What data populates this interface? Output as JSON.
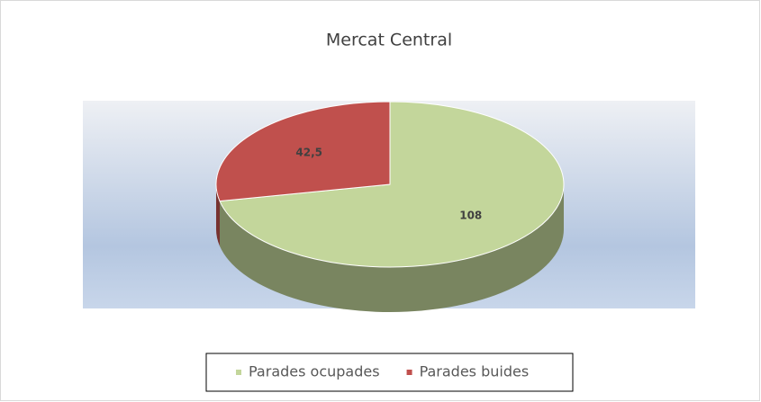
{
  "chart_data": {
    "type": "pie",
    "title": "Mercat Central",
    "categories": [
      "Parades ocupades",
      "Parades buides"
    ],
    "values": [
      108,
      42.5
    ],
    "value_labels": [
      "108",
      "42,5"
    ],
    "colors": [
      "#c3d69b",
      "#c0504d"
    ],
    "legend": "bottom"
  }
}
